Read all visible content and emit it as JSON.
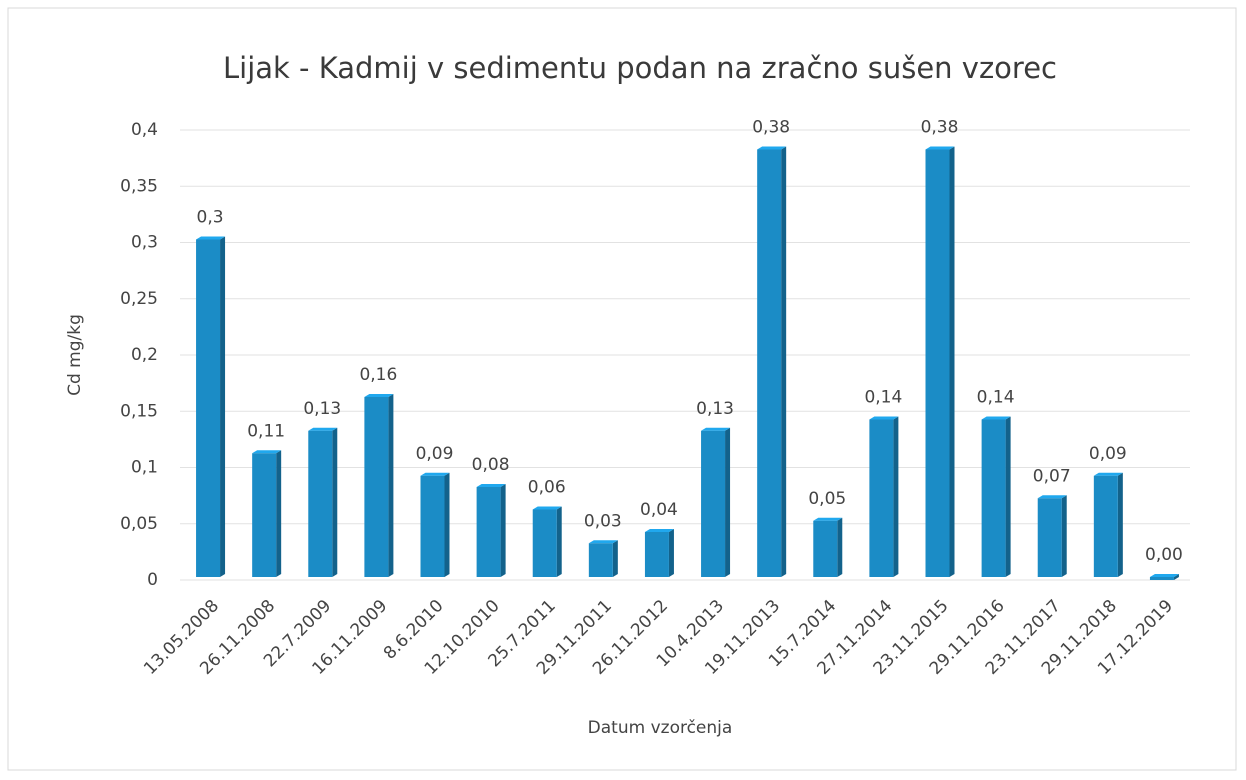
{
  "chart_data": {
    "type": "bar",
    "title": "Lijak - Kadmij v sedimentu podan na zračno sušen vzorec",
    "x_label": "Datum vzorčenja",
    "y_label": "Cd mg/kg",
    "categories": [
      "13.05.2008",
      "26.11.2008",
      "22.7.2009",
      "16.11.2009",
      "8.6.2010",
      "12.10.2010",
      "25.7.2011",
      "29.11.2011",
      "26.11.2012",
      "10.4.2013",
      "19.11.2013",
      "15.7.2014",
      "27.11.2014",
      "23.11.2015",
      "29.11.2016",
      "23.11.2017",
      "29.11.2018",
      "17.12.2019"
    ],
    "values": [
      0.3,
      0.11,
      0.13,
      0.16,
      0.09,
      0.08,
      0.06,
      0.03,
      0.04,
      0.13,
      0.38,
      0.05,
      0.14,
      0.38,
      0.14,
      0.07,
      0.09,
      0
    ],
    "value_labels": [
      "0,3",
      "0,11",
      "0,13",
      "0,16",
      "0,09",
      "0,08",
      "0,06",
      "0,03",
      "0,04",
      "0,13",
      "0,38",
      "0,05",
      "0,14",
      "0,38",
      "0,14",
      "0,07",
      "0,09",
      "0,00"
    ],
    "color": "#1b8cc6",
    "ylim": [
      0,
      0.4
    ],
    "yticks": [
      0,
      {
        "value": 0.05,
        "label": "0,05"
      },
      {
        "value": 0.1,
        "label": "0,1"
      },
      {
        "value": 0.15,
        "label": "0,15"
      },
      {
        "value": 0.2,
        "label": "0,2"
      },
      {
        "value": 0.25,
        "label": "0,25"
      },
      {
        "value": 0.3,
        "label": "0,3"
      },
      {
        "value": 0.35,
        "label": "0,35"
      },
      {
        "value": 0.4,
        "label": "0,4"
      }
    ],
    "grid": true
  }
}
